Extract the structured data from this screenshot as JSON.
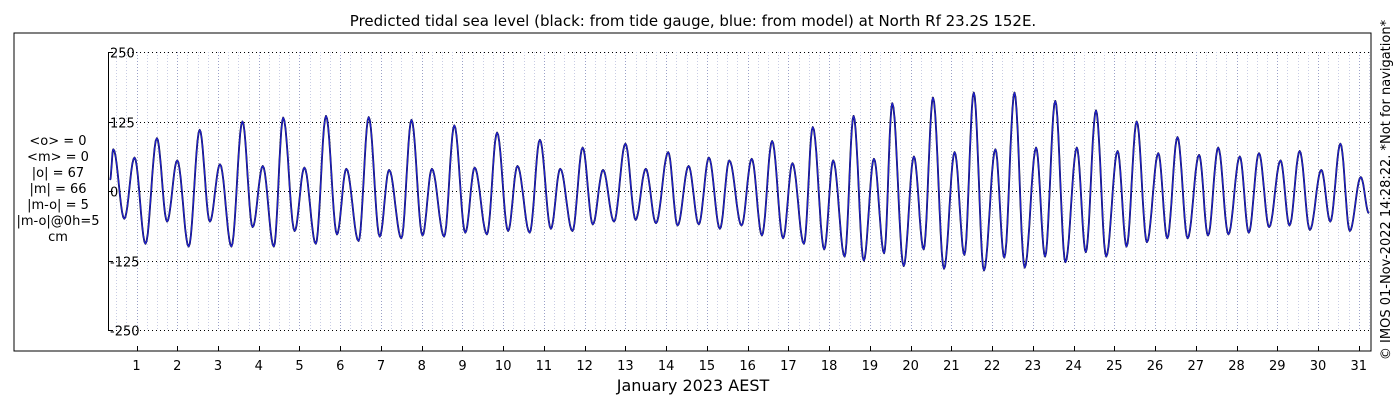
{
  "chart_data": {
    "type": "line",
    "title": "Predicted tidal sea level (black: from tide gauge, blue: from model) at North Rf 23.2S 152E.",
    "xlabel": "January 2023 AEST",
    "ylabel": "",
    "unit": "cm",
    "x_range_days": [
      0.3,
      31.3
    ],
    "ylim": [
      -270,
      270
    ],
    "y_ticks": [
      250,
      125,
      0,
      -125,
      -250
    ],
    "y_tick_labels": [
      "250",
      "125",
      "0",
      "-125",
      "-250"
    ],
    "x_ticks": [
      1,
      2,
      3,
      4,
      5,
      6,
      7,
      8,
      9,
      10,
      11,
      12,
      13,
      14,
      15,
      16,
      17,
      18,
      19,
      20,
      21,
      22,
      23,
      24,
      25,
      26,
      27,
      28,
      29,
      30,
      31
    ],
    "x_tick_labels": [
      "1",
      "2",
      "3",
      "4",
      "5",
      "6",
      "7",
      "8",
      "9",
      "10",
      "11",
      "12",
      "13",
      "14",
      "15",
      "16",
      "17",
      "18",
      "19",
      "20",
      "21",
      "22",
      "23",
      "24",
      "25",
      "26",
      "27",
      "28",
      "29",
      "30",
      "31"
    ],
    "grid": true,
    "stats": [
      "<o> = 0",
      "<m> = 0",
      "|o| = 67",
      "|m| = 66",
      "|m-o| = 5",
      "|m-o|@0h=5",
      "cm"
    ],
    "side_note": "© IMOS 01-Nov-2022 14:28:22. *Not for navigation*",
    "series": [
      {
        "color": "#000000",
        "high_waters": [
          [
            0.43,
            75
          ],
          [
            0.95,
            60
          ],
          [
            1.5,
            95
          ],
          [
            2.0,
            55
          ],
          [
            2.55,
            110
          ],
          [
            3.05,
            48
          ],
          [
            3.6,
            125
          ],
          [
            4.1,
            45
          ],
          [
            4.6,
            132
          ],
          [
            5.12,
            42
          ],
          [
            5.65,
            135
          ],
          [
            6.15,
            40
          ],
          [
            6.7,
            133
          ],
          [
            7.2,
            38
          ],
          [
            7.75,
            128
          ],
          [
            8.25,
            40
          ],
          [
            8.8,
            118
          ],
          [
            9.3,
            42
          ],
          [
            9.85,
            105
          ],
          [
            10.35,
            45
          ],
          [
            10.9,
            92
          ],
          [
            11.4,
            40
          ],
          [
            11.95,
            78
          ],
          [
            12.45,
            38
          ],
          [
            13.0,
            85
          ],
          [
            13.5,
            40
          ],
          [
            14.05,
            70
          ],
          [
            14.55,
            45
          ],
          [
            15.05,
            60
          ],
          [
            15.55,
            55
          ],
          [
            16.1,
            58
          ],
          [
            16.6,
            90
          ],
          [
            17.1,
            50
          ],
          [
            17.6,
            115
          ],
          [
            18.1,
            55
          ],
          [
            18.6,
            135
          ],
          [
            19.1,
            58
          ],
          [
            19.55,
            158
          ],
          [
            20.08,
            62
          ],
          [
            20.55,
            168
          ],
          [
            21.08,
            70
          ],
          [
            21.55,
            177
          ],
          [
            22.08,
            75
          ],
          [
            22.55,
            177
          ],
          [
            23.08,
            78
          ],
          [
            23.55,
            162
          ],
          [
            24.08,
            78
          ],
          [
            24.55,
            145
          ],
          [
            25.08,
            72
          ],
          [
            25.55,
            125
          ],
          [
            26.08,
            68
          ],
          [
            26.55,
            97
          ],
          [
            27.08,
            65
          ],
          [
            27.55,
            78
          ],
          [
            28.08,
            62
          ],
          [
            28.55,
            68
          ],
          [
            29.08,
            55
          ],
          [
            29.55,
            72
          ],
          [
            30.08,
            38
          ],
          [
            30.55,
            85
          ],
          [
            31.05,
            25
          ]
        ],
        "low_waters": [
          [
            0.35,
            20
          ],
          [
            0.7,
            -50
          ],
          [
            1.22,
            -95
          ],
          [
            1.75,
            -55
          ],
          [
            2.28,
            -100
          ],
          [
            2.8,
            -55
          ],
          [
            3.33,
            -100
          ],
          [
            3.85,
            -65
          ],
          [
            4.37,
            -100
          ],
          [
            4.88,
            -72
          ],
          [
            5.4,
            -95
          ],
          [
            5.92,
            -78
          ],
          [
            6.45,
            -90
          ],
          [
            6.97,
            -82
          ],
          [
            7.5,
            -85
          ],
          [
            8.02,
            -80
          ],
          [
            8.55,
            -82
          ],
          [
            9.07,
            -75
          ],
          [
            9.6,
            -78
          ],
          [
            10.12,
            -72
          ],
          [
            10.65,
            -75
          ],
          [
            11.17,
            -68
          ],
          [
            11.7,
            -72
          ],
          [
            12.2,
            -60
          ],
          [
            12.72,
            -55
          ],
          [
            13.25,
            -52
          ],
          [
            13.75,
            -58
          ],
          [
            14.28,
            -62
          ],
          [
            14.8,
            -60
          ],
          [
            15.32,
            -68
          ],
          [
            15.85,
            -62
          ],
          [
            16.35,
            -80
          ],
          [
            16.87,
            -85
          ],
          [
            17.38,
            -95
          ],
          [
            17.88,
            -105
          ],
          [
            18.38,
            -118
          ],
          [
            18.85,
            -125
          ],
          [
            19.35,
            -112
          ],
          [
            19.83,
            -135
          ],
          [
            20.32,
            -105
          ],
          [
            20.82,
            -140
          ],
          [
            21.32,
            -115
          ],
          [
            21.8,
            -143
          ],
          [
            22.3,
            -120
          ],
          [
            22.8,
            -138
          ],
          [
            23.3,
            -118
          ],
          [
            23.8,
            -128
          ],
          [
            24.3,
            -110
          ],
          [
            24.8,
            -118
          ],
          [
            25.3,
            -100
          ],
          [
            25.8,
            -92
          ],
          [
            26.3,
            -85
          ],
          [
            26.8,
            -85
          ],
          [
            27.3,
            -80
          ],
          [
            27.8,
            -78
          ],
          [
            28.3,
            -75
          ],
          [
            28.8,
            -65
          ],
          [
            29.3,
            -62
          ],
          [
            29.8,
            -70
          ],
          [
            30.3,
            -55
          ],
          [
            30.78,
            -72
          ],
          [
            31.25,
            -40
          ]
        ]
      },
      {
        "color": "#1f1fcc",
        "high_waters": [
          [
            0.43,
            75
          ],
          [
            0.95,
            60
          ],
          [
            1.5,
            95
          ],
          [
            2.0,
            55
          ],
          [
            2.55,
            110
          ],
          [
            3.05,
            48
          ],
          [
            3.6,
            125
          ],
          [
            4.1,
            45
          ],
          [
            4.6,
            132
          ],
          [
            5.12,
            42
          ],
          [
            5.65,
            135
          ],
          [
            6.15,
            40
          ],
          [
            6.7,
            133
          ],
          [
            7.2,
            38
          ],
          [
            7.75,
            128
          ],
          [
            8.25,
            40
          ],
          [
            8.8,
            118
          ],
          [
            9.3,
            42
          ],
          [
            9.85,
            105
          ],
          [
            10.35,
            45
          ],
          [
            10.9,
            92
          ],
          [
            11.4,
            40
          ],
          [
            11.95,
            78
          ],
          [
            12.45,
            38
          ],
          [
            13.0,
            85
          ],
          [
            13.5,
            40
          ],
          [
            14.05,
            70
          ],
          [
            14.55,
            45
          ],
          [
            15.05,
            60
          ],
          [
            15.55,
            55
          ],
          [
            16.1,
            58
          ],
          [
            16.6,
            90
          ],
          [
            17.1,
            50
          ],
          [
            17.6,
            115
          ],
          [
            18.1,
            55
          ],
          [
            18.6,
            135
          ],
          [
            19.1,
            58
          ],
          [
            19.55,
            158
          ],
          [
            20.08,
            62
          ],
          [
            20.55,
            168
          ],
          [
            21.08,
            70
          ],
          [
            21.55,
            177
          ],
          [
            22.08,
            75
          ],
          [
            22.55,
            177
          ],
          [
            23.08,
            78
          ],
          [
            23.55,
            162
          ],
          [
            24.08,
            78
          ],
          [
            24.55,
            145
          ],
          [
            25.08,
            72
          ],
          [
            25.55,
            125
          ],
          [
            26.08,
            68
          ],
          [
            26.55,
            97
          ],
          [
            27.08,
            65
          ],
          [
            27.55,
            78
          ],
          [
            28.08,
            62
          ],
          [
            28.55,
            68
          ],
          [
            29.08,
            55
          ],
          [
            29.55,
            72
          ],
          [
            30.08,
            38
          ],
          [
            30.55,
            85
          ],
          [
            31.05,
            25
          ]
        ],
        "low_waters": [
          [
            0.35,
            20
          ],
          [
            0.7,
            -50
          ],
          [
            1.22,
            -95
          ],
          [
            1.75,
            -55
          ],
          [
            2.28,
            -100
          ],
          [
            2.8,
            -55
          ],
          [
            3.33,
            -100
          ],
          [
            3.85,
            -65
          ],
          [
            4.37,
            -100
          ],
          [
            4.88,
            -72
          ],
          [
            5.4,
            -95
          ],
          [
            5.92,
            -78
          ],
          [
            6.45,
            -90
          ],
          [
            6.97,
            -82
          ],
          [
            7.5,
            -85
          ],
          [
            8.02,
            -80
          ],
          [
            8.55,
            -82
          ],
          [
            9.07,
            -75
          ],
          [
            9.6,
            -78
          ],
          [
            10.12,
            -72
          ],
          [
            10.65,
            -75
          ],
          [
            11.17,
            -68
          ],
          [
            11.7,
            -72
          ],
          [
            12.2,
            -60
          ],
          [
            12.72,
            -55
          ],
          [
            13.25,
            -52
          ],
          [
            13.75,
            -58
          ],
          [
            14.28,
            -62
          ],
          [
            14.8,
            -60
          ],
          [
            15.32,
            -68
          ],
          [
            15.85,
            -62
          ],
          [
            16.35,
            -80
          ],
          [
            16.87,
            -85
          ],
          [
            17.38,
            -95
          ],
          [
            17.88,
            -105
          ],
          [
            18.38,
            -118
          ],
          [
            18.85,
            -125
          ],
          [
            19.35,
            -112
          ],
          [
            19.83,
            -135
          ],
          [
            20.32,
            -105
          ],
          [
            20.82,
            -140
          ],
          [
            21.32,
            -115
          ],
          [
            21.8,
            -143
          ],
          [
            22.3,
            -120
          ],
          [
            22.8,
            -138
          ],
          [
            23.3,
            -118
          ],
          [
            23.8,
            -128
          ],
          [
            24.3,
            -110
          ],
          [
            24.8,
            -118
          ],
          [
            25.3,
            -100
          ],
          [
            25.8,
            -92
          ],
          [
            26.3,
            -85
          ],
          [
            26.8,
            -85
          ],
          [
            27.3,
            -80
          ],
          [
            27.8,
            -78
          ],
          [
            28.3,
            -75
          ],
          [
            28.8,
            -65
          ],
          [
            29.3,
            -62
          ],
          [
            29.8,
            -70
          ],
          [
            30.3,
            -55
          ],
          [
            30.78,
            -72
          ],
          [
            31.25,
            -40
          ]
        ]
      }
    ]
  }
}
